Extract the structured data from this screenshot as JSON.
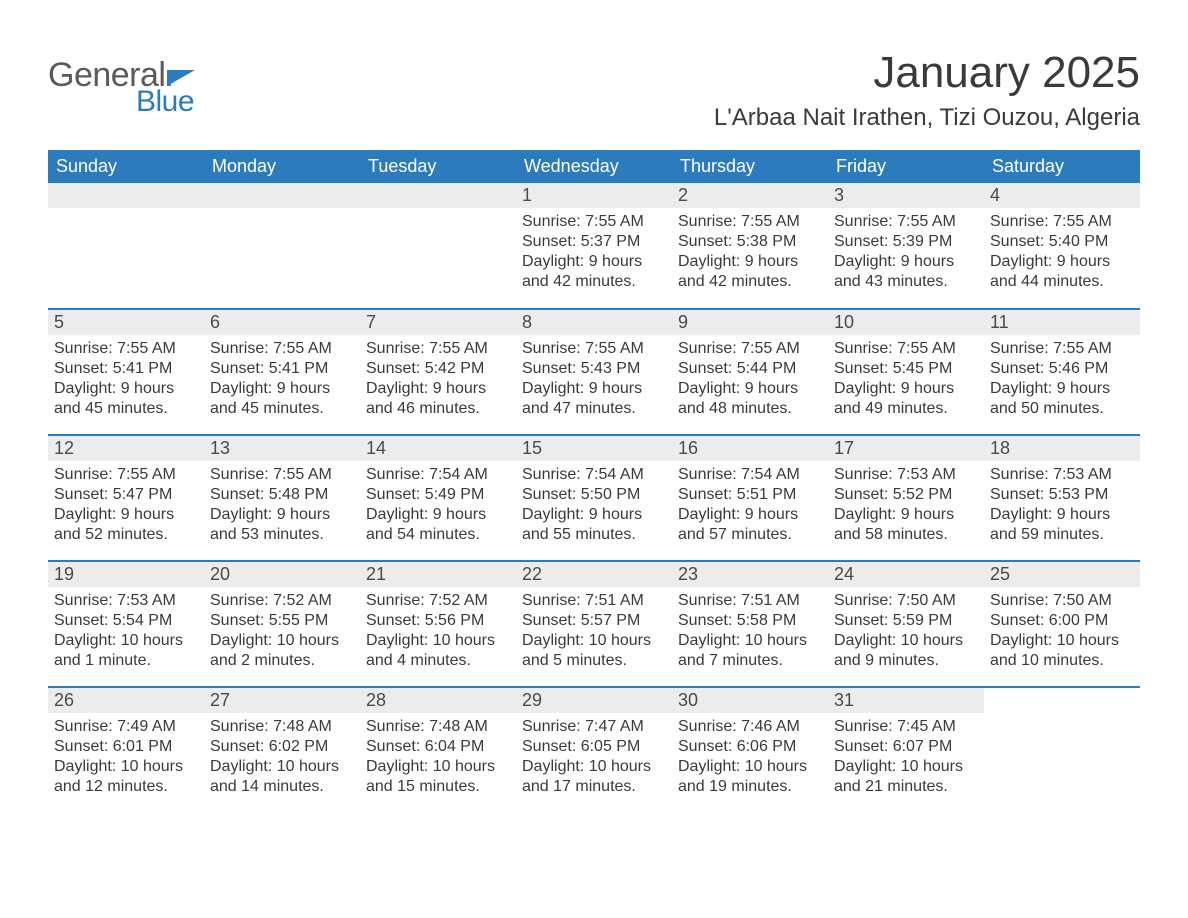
{
  "logo": {
    "general": "General",
    "blue": "Blue",
    "flag_color": "#2b7bbd"
  },
  "title": "January 2025",
  "location": "L'Arbaa Nait Irathen, Tizi Ouzou, Algeria",
  "colors": {
    "header_bg": "#2b7bbd",
    "header_text": "#ffffff",
    "daynum_bg": "#ececec",
    "text": "#3a3a3a",
    "row_border": "#2b7bbd",
    "page_bg": "#ffffff"
  },
  "typography": {
    "title_fontsize": 44,
    "location_fontsize": 24,
    "header_fontsize": 18,
    "daynum_fontsize": 18,
    "body_fontsize": 16,
    "font_family": "Arial"
  },
  "layout": {
    "columns": 7,
    "rows": 5,
    "leading_blanks": 3,
    "trailing_blanks": 1
  },
  "weekdays": [
    "Sunday",
    "Monday",
    "Tuesday",
    "Wednesday",
    "Thursday",
    "Friday",
    "Saturday"
  ],
  "days": [
    {
      "n": 1,
      "sunrise": "7:55 AM",
      "sunset": "5:37 PM",
      "daylight": "9 hours and 42 minutes."
    },
    {
      "n": 2,
      "sunrise": "7:55 AM",
      "sunset": "5:38 PM",
      "daylight": "9 hours and 42 minutes."
    },
    {
      "n": 3,
      "sunrise": "7:55 AM",
      "sunset": "5:39 PM",
      "daylight": "9 hours and 43 minutes."
    },
    {
      "n": 4,
      "sunrise": "7:55 AM",
      "sunset": "5:40 PM",
      "daylight": "9 hours and 44 minutes."
    },
    {
      "n": 5,
      "sunrise": "7:55 AM",
      "sunset": "5:41 PM",
      "daylight": "9 hours and 45 minutes."
    },
    {
      "n": 6,
      "sunrise": "7:55 AM",
      "sunset": "5:41 PM",
      "daylight": "9 hours and 45 minutes."
    },
    {
      "n": 7,
      "sunrise": "7:55 AM",
      "sunset": "5:42 PM",
      "daylight": "9 hours and 46 minutes."
    },
    {
      "n": 8,
      "sunrise": "7:55 AM",
      "sunset": "5:43 PM",
      "daylight": "9 hours and 47 minutes."
    },
    {
      "n": 9,
      "sunrise": "7:55 AM",
      "sunset": "5:44 PM",
      "daylight": "9 hours and 48 minutes."
    },
    {
      "n": 10,
      "sunrise": "7:55 AM",
      "sunset": "5:45 PM",
      "daylight": "9 hours and 49 minutes."
    },
    {
      "n": 11,
      "sunrise": "7:55 AM",
      "sunset": "5:46 PM",
      "daylight": "9 hours and 50 minutes."
    },
    {
      "n": 12,
      "sunrise": "7:55 AM",
      "sunset": "5:47 PM",
      "daylight": "9 hours and 52 minutes."
    },
    {
      "n": 13,
      "sunrise": "7:55 AM",
      "sunset": "5:48 PM",
      "daylight": "9 hours and 53 minutes."
    },
    {
      "n": 14,
      "sunrise": "7:54 AM",
      "sunset": "5:49 PM",
      "daylight": "9 hours and 54 minutes."
    },
    {
      "n": 15,
      "sunrise": "7:54 AM",
      "sunset": "5:50 PM",
      "daylight": "9 hours and 55 minutes."
    },
    {
      "n": 16,
      "sunrise": "7:54 AM",
      "sunset": "5:51 PM",
      "daylight": "9 hours and 57 minutes."
    },
    {
      "n": 17,
      "sunrise": "7:53 AM",
      "sunset": "5:52 PM",
      "daylight": "9 hours and 58 minutes."
    },
    {
      "n": 18,
      "sunrise": "7:53 AM",
      "sunset": "5:53 PM",
      "daylight": "9 hours and 59 minutes."
    },
    {
      "n": 19,
      "sunrise": "7:53 AM",
      "sunset": "5:54 PM",
      "daylight": "10 hours and 1 minute."
    },
    {
      "n": 20,
      "sunrise": "7:52 AM",
      "sunset": "5:55 PM",
      "daylight": "10 hours and 2 minutes."
    },
    {
      "n": 21,
      "sunrise": "7:52 AM",
      "sunset": "5:56 PM",
      "daylight": "10 hours and 4 minutes."
    },
    {
      "n": 22,
      "sunrise": "7:51 AM",
      "sunset": "5:57 PM",
      "daylight": "10 hours and 5 minutes."
    },
    {
      "n": 23,
      "sunrise": "7:51 AM",
      "sunset": "5:58 PM",
      "daylight": "10 hours and 7 minutes."
    },
    {
      "n": 24,
      "sunrise": "7:50 AM",
      "sunset": "5:59 PM",
      "daylight": "10 hours and 9 minutes."
    },
    {
      "n": 25,
      "sunrise": "7:50 AM",
      "sunset": "6:00 PM",
      "daylight": "10 hours and 10 minutes."
    },
    {
      "n": 26,
      "sunrise": "7:49 AM",
      "sunset": "6:01 PM",
      "daylight": "10 hours and 12 minutes."
    },
    {
      "n": 27,
      "sunrise": "7:48 AM",
      "sunset": "6:02 PM",
      "daylight": "10 hours and 14 minutes."
    },
    {
      "n": 28,
      "sunrise": "7:48 AM",
      "sunset": "6:04 PM",
      "daylight": "10 hours and 15 minutes."
    },
    {
      "n": 29,
      "sunrise": "7:47 AM",
      "sunset": "6:05 PM",
      "daylight": "10 hours and 17 minutes."
    },
    {
      "n": 30,
      "sunrise": "7:46 AM",
      "sunset": "6:06 PM",
      "daylight": "10 hours and 19 minutes."
    },
    {
      "n": 31,
      "sunrise": "7:45 AM",
      "sunset": "6:07 PM",
      "daylight": "10 hours and 21 minutes."
    }
  ],
  "labels": {
    "sunrise": "Sunrise:",
    "sunset": "Sunset:",
    "daylight": "Daylight:"
  }
}
